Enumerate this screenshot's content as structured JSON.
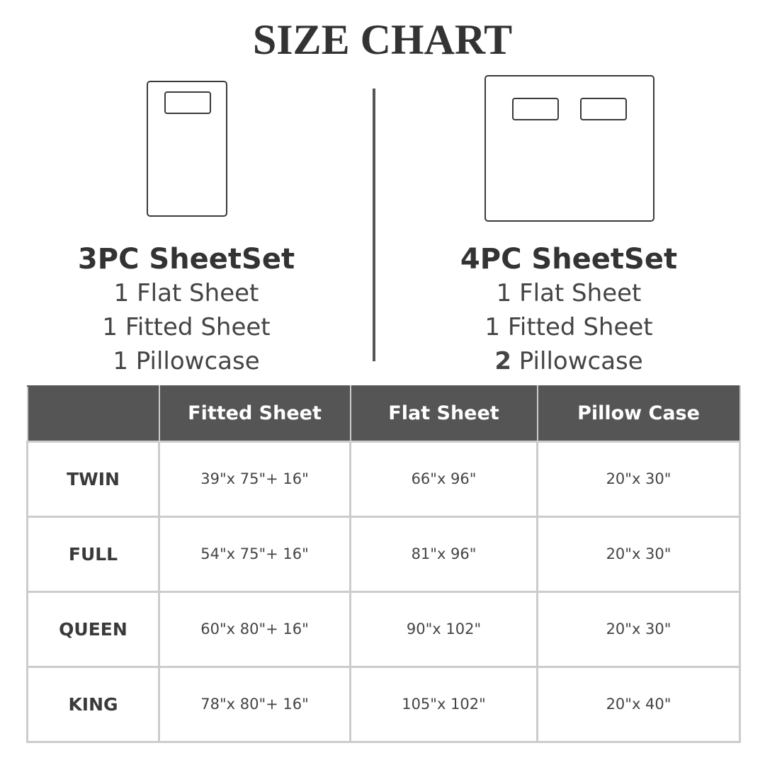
{
  "title": "SIZE CHART",
  "sets": [
    {
      "name": "3PC SheetSet",
      "items": [
        "1 Flat Sheet",
        "1 Fitted Sheet"
      ],
      "last_count": "1",
      "last_item": "Pillowcase",
      "icon": "twin-bed-icon"
    },
    {
      "name": "4PC SheetSet",
      "items": [
        "1 Flat Sheet",
        "1 Fitted Sheet"
      ],
      "last_count": "2",
      "last_item": "Pillowcase",
      "icon": "king-bed-icon"
    }
  ],
  "table": {
    "headers": [
      "",
      "Fitted Sheet",
      "Flat Sheet",
      "Pillow Case"
    ],
    "rows": [
      [
        "TWIN",
        "39\"x 75\"+ 16\"",
        "66\"x 96\"",
        "20\"x 30\""
      ],
      [
        "FULL",
        "54\"x 75\"+ 16\"",
        "81\"x 96\"",
        "20\"x 30\""
      ],
      [
        "QUEEN",
        "60\"x 80\"+ 16\"",
        "90\"x 102\"",
        "20\"x 30\""
      ],
      [
        "KING",
        "78\"x 80\"+ 16\"",
        "105\"x 102\"",
        "20\"x 40\""
      ]
    ]
  },
  "colors": {
    "header_bg": "#555555",
    "border": "#cccccc",
    "text": "#3a3a3a"
  }
}
